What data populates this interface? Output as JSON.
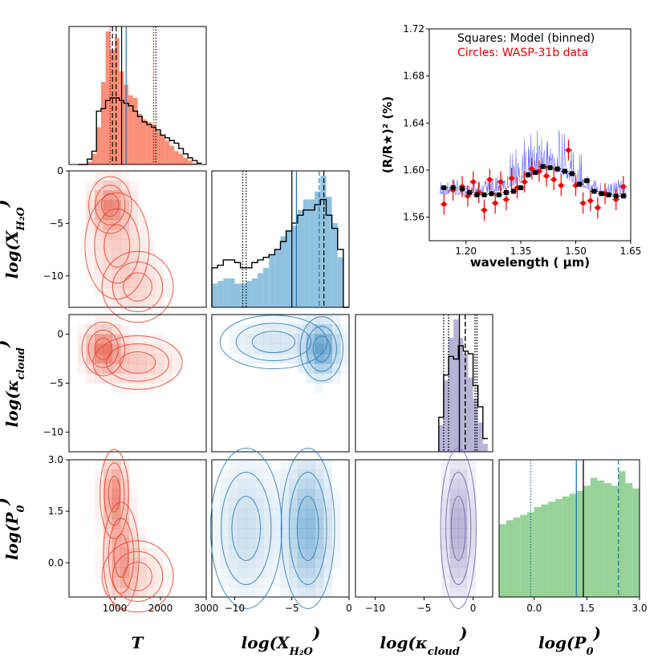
{
  "chart_data": [
    {
      "type": "corner-histogram",
      "panel": "T",
      "color": "#fb6a4a",
      "xlim": [
        0,
        3000
      ],
      "bins": [
        250,
        350,
        450,
        550,
        650,
        750,
        850,
        950,
        1050,
        1150,
        1250,
        1350,
        1450,
        1550,
        1650,
        1750,
        1850,
        1950,
        2050,
        2150,
        2250,
        2350,
        2450,
        2550,
        2650,
        2750,
        2850
      ],
      "filled": [
        0,
        0,
        2,
        8,
        28,
        62,
        100,
        86,
        95,
        70,
        60,
        52,
        50,
        38,
        34,
        32,
        30,
        25,
        22,
        18,
        14,
        10,
        8,
        5,
        3,
        1,
        0
      ],
      "outline": [
        0,
        0,
        4,
        10,
        40,
        42,
        48,
        50,
        50,
        48,
        46,
        44,
        40,
        36,
        32,
        30,
        28,
        26,
        22,
        20,
        18,
        16,
        12,
        8,
        5,
        3,
        1
      ],
      "lines": {
        "median_filled": 1150,
        "median_outline": 1250,
        "dash": 950,
        "dash2": 1030,
        "dotted": [
          900,
          1850
        ],
        "dotted2": 1900
      }
    },
    {
      "type": "corner-histogram",
      "panel": "logX_H2O",
      "color": "#6baed6",
      "xlim": [
        -12,
        0
      ],
      "xticks": [
        -10,
        -5,
        0
      ],
      "bins": [
        -11.75,
        -11.25,
        -10.75,
        -10.25,
        -9.75,
        -9.25,
        -8.75,
        -8.25,
        -7.75,
        -7.25,
        -6.75,
        -6.25,
        -5.75,
        -5.25,
        -4.75,
        -4.25,
        -3.75,
        -3.25,
        -2.75,
        -2.25,
        -1.75,
        -1.25,
        -0.75,
        -0.25
      ],
      "filled": [
        18,
        20,
        22,
        22,
        18,
        18,
        20,
        22,
        26,
        30,
        40,
        44,
        54,
        58,
        62,
        74,
        82,
        82,
        88,
        100,
        84,
        64,
        38,
        0
      ],
      "outline": [
        30,
        32,
        36,
        36,
        34,
        30,
        30,
        34,
        36,
        38,
        40,
        44,
        50,
        58,
        64,
        70,
        74,
        74,
        78,
        82,
        70,
        60,
        44,
        0
      ],
      "lines": {
        "solid1": -5.0,
        "solid2": -4.6,
        "dashed": -2.2,
        "dash_blue": -2.6,
        "dotted": [
          -9.3,
          -9.0
        ]
      }
    },
    {
      "type": "corner-histogram",
      "panel": "log_kappa",
      "color": "#9e9ac8",
      "xlim": [
        -12,
        2
      ],
      "bins": [
        -3.25,
        -2.75,
        -2.25,
        -1.75,
        -1.25,
        -0.75,
        -0.25,
        0.25,
        0.75,
        1.25
      ],
      "filled": [
        20,
        54,
        86,
        100,
        86,
        74,
        56,
        40,
        22,
        6
      ],
      "outline": [
        26,
        58,
        72,
        70,
        80,
        76,
        74,
        50,
        34,
        10
      ],
      "lines": {
        "solid": -1.4,
        "dashed": -0.8,
        "dotted": [
          -3.0,
          -2.5,
          0.2,
          0.4
        ]
      }
    },
    {
      "type": "corner-histogram",
      "panel": "logP0",
      "color": "#74c476",
      "xlim": [
        -1,
        3
      ],
      "xticks": [
        0.0,
        1.5,
        3.0
      ],
      "bins": [
        -0.9,
        -0.7,
        -0.5,
        -0.3,
        -0.1,
        0.1,
        0.3,
        0.5,
        0.7,
        0.9,
        1.1,
        1.3,
        1.5,
        1.7,
        1.9,
        2.1,
        2.3,
        2.5,
        2.7,
        2.9
      ],
      "filled": [
        55,
        58,
        60,
        62,
        64,
        68,
        70,
        72,
        74,
        76,
        78,
        80,
        84,
        90,
        88,
        86,
        84,
        95,
        86,
        82
      ],
      "lines": {
        "dotted": -0.1,
        "solid_blue": 1.2,
        "solid_black": 1.4,
        "dashed_blue": 2.4
      }
    },
    {
      "type": "scatter",
      "panel": "spectrum",
      "title": "",
      "xlabel": "wavelength ( μm)",
      "ylabel": "(R/R★)² (%)",
      "xlim": [
        1.1,
        1.65
      ],
      "ylim": [
        1.54,
        1.72
      ],
      "xticks": [
        1.2,
        1.35,
        1.5,
        1.65
      ],
      "yticks": [
        1.56,
        1.6,
        1.64,
        1.68,
        1.72
      ],
      "legend": {
        "model": "Squares: Model (binned)",
        "data": "Circles: WASP-31b data"
      },
      "series": [
        {
          "name": "WASP-31b data",
          "x": [
            1.14,
            1.165,
            1.19,
            1.205,
            1.22,
            1.235,
            1.25,
            1.265,
            1.28,
            1.295,
            1.31,
            1.325,
            1.34,
            1.36,
            1.38,
            1.4,
            1.42,
            1.44,
            1.46,
            1.48,
            1.5,
            1.52,
            1.54,
            1.56,
            1.58,
            1.61,
            1.63
          ],
          "y": [
            1.571,
            1.583,
            1.586,
            1.578,
            1.59,
            1.581,
            1.566,
            1.592,
            1.572,
            1.59,
            1.575,
            1.593,
            1.585,
            1.59,
            1.601,
            1.599,
            1.595,
            1.592,
            1.587,
            1.617,
            1.587,
            1.572,
            1.574,
            1.568,
            1.58,
            1.575,
            1.586
          ],
          "yerr": [
            0.009,
            0.009,
            0.009,
            0.009,
            0.009,
            0.009,
            0.009,
            0.009,
            0.009,
            0.009,
            0.009,
            0.009,
            0.009,
            0.009,
            0.009,
            0.009,
            0.009,
            0.009,
            0.009,
            0.009,
            0.009,
            0.009,
            0.009,
            0.009,
            0.009,
            0.009,
            0.009
          ]
        },
        {
          "name": "Model (binned)",
          "x": [
            1.14,
            1.165,
            1.19,
            1.21,
            1.23,
            1.25,
            1.27,
            1.29,
            1.31,
            1.33,
            1.35,
            1.37,
            1.39,
            1.41,
            1.43,
            1.45,
            1.47,
            1.49,
            1.51,
            1.53,
            1.55,
            1.57,
            1.59,
            1.61,
            1.63
          ],
          "y": [
            1.585,
            1.585,
            1.584,
            1.581,
            1.579,
            1.579,
            1.58,
            1.579,
            1.581,
            1.582,
            1.585,
            1.596,
            1.598,
            1.603,
            1.602,
            1.601,
            1.599,
            1.597,
            1.588,
            1.591,
            1.582,
            1.58,
            1.579,
            1.578,
            1.578
          ]
        }
      ]
    },
    {
      "type": "axes-labels",
      "T": "T",
      "logX": "log(X",
      "logX_sub": "H₂O",
      "logK": "log(κ",
      "logK_sub": "cloud",
      "logP": "log(P",
      "logP_sub": "0",
      "close": ")"
    }
  ]
}
